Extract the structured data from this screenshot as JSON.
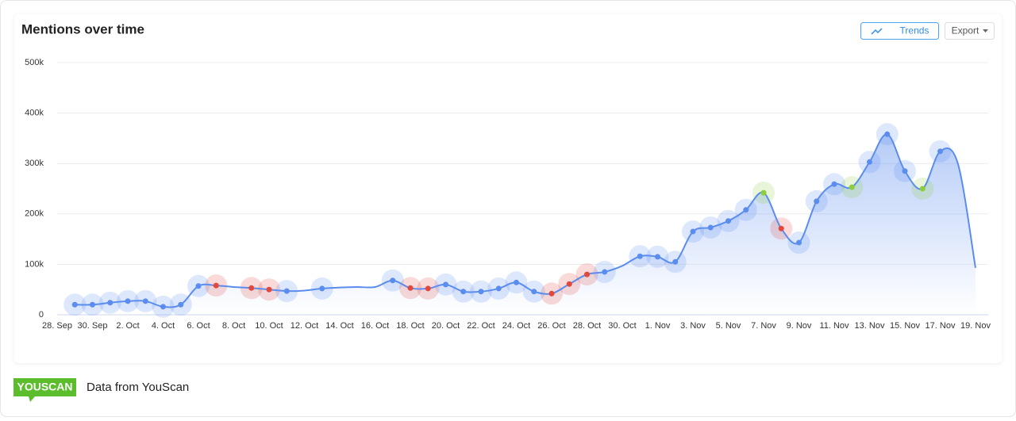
{
  "chart_data": {
    "type": "line",
    "title": "Mentions over time",
    "categories": [
      "28. Sep",
      null,
      "30. Sep",
      null,
      "2. Oct",
      null,
      "4. Oct",
      null,
      "6. Oct",
      null,
      "8. Oct",
      null,
      "10. Oct",
      null,
      "12. Oct",
      null,
      "14. Oct",
      null,
      "16. Oct",
      null,
      "18. Oct",
      null,
      "20. Oct",
      null,
      "22. Oct",
      null,
      "24. Oct",
      null,
      "26. Oct",
      null,
      "28. Oct",
      null,
      "30. Oct",
      null,
      "1. Nov",
      null,
      "3. Nov",
      null,
      "5. Nov",
      null,
      "7. Nov",
      null,
      "9. Nov",
      null,
      "11. Nov",
      null,
      "13. Nov",
      null,
      "15. Nov",
      null,
      "17. Nov",
      null,
      "19. Nov"
    ],
    "series": [
      {
        "color": "#5b8def",
        "values": [
          null,
          20000,
          20000,
          24000,
          27000,
          27000,
          16000,
          20000,
          57000,
          58000,
          55000,
          53000,
          50000,
          47000,
          48000,
          52000,
          54000,
          55000,
          55000,
          68000,
          53000,
          52000,
          60000,
          46000,
          46000,
          52000,
          64000,
          46000,
          42000,
          61000,
          80000,
          85000,
          97000,
          116000,
          115000,
          105000,
          165000,
          173000,
          186000,
          208000,
          242000,
          171000,
          143000,
          225000,
          259000,
          253000,
          303000,
          358000,
          285000,
          250000,
          324000,
          300000,
          93000
        ],
        "point_colors": [
          null,
          "#5b8def",
          "#5b8def",
          "#5b8def",
          "#5b8def",
          "#5b8def",
          "#5b8def",
          "#5b8def",
          "#5b8def",
          "#e0483e",
          null,
          "#e0483e",
          "#e0483e",
          "#5b8def",
          null,
          "#5b8def",
          null,
          null,
          null,
          "#5b8def",
          "#e0483e",
          "#e0483e",
          "#5b8def",
          "#5b8def",
          "#5b8def",
          "#5b8def",
          "#5b8def",
          "#5b8def",
          "#e0483e",
          "#e0483e",
          "#e0483e",
          "#5b8def",
          null,
          "#5b8def",
          "#5b8def",
          "#5b8def",
          "#5b8def",
          "#5b8def",
          "#5b8def",
          "#5b8def",
          "#8bcf3a",
          "#e0483e",
          "#5b8def",
          "#5b8def",
          "#5b8def",
          "#8bcf3a",
          "#5b8def",
          "#5b8def",
          "#5b8def",
          "#8bcf3a",
          "#5b8def",
          null,
          null
        ]
      }
    ],
    "ylim": [
      0,
      500000
    ],
    "yticks": [
      0,
      {
        "value": 100000,
        "label": "100k"
      },
      {
        "value": 200000,
        "label": "200k"
      },
      {
        "value": 300000,
        "label": "300k"
      },
      {
        "value": 400000,
        "label": "400k"
      },
      {
        "value": 500000,
        "label": "500k"
      }
    ],
    "grid": true,
    "area": true
  },
  "buttons": {
    "trends": "Trends",
    "export": "Export"
  },
  "footer": {
    "logo": "YOUSCAN",
    "text": "Data from YouScan"
  }
}
